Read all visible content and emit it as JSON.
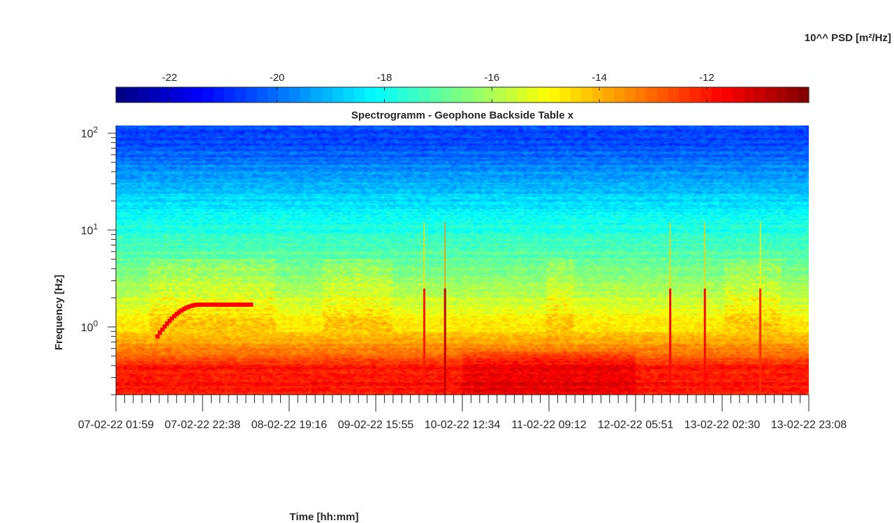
{
  "chart_data": {
    "type": "heatmap",
    "title": "Spectrogramm - Geophone Backside Table x",
    "xlabel": "Time [hh:mm]",
    "ylabel": "Frequency [Hz]",
    "y_scale": "log",
    "ylim": [
      0.2,
      120
    ],
    "y_ticks": [
      1,
      10,
      100
    ],
    "y_tick_labels": [
      {
        "base": "10",
        "exp": "0"
      },
      {
        "base": "10",
        "exp": "1"
      },
      {
        "base": "10",
        "exp": "2"
      }
    ],
    "x_tick_labels": [
      "07-02-22 01:59",
      "07-02-22 22:38",
      "08-02-22 19:16",
      "09-02-22 15:55",
      "10-02-22 12:34",
      "11-02-22 09:12",
      "12-02-22 05:51",
      "13-02-22 02:30",
      "13-02-22 23:08"
    ],
    "colorbar": {
      "label": "10^^ PSD [m²/Hz]",
      "range": [
        -23,
        -10.1
      ],
      "ticks": [
        -22,
        -20,
        -18,
        -16,
        -14,
        -12
      ],
      "tick_labels": [
        "-22",
        "-20",
        "-18",
        "-16",
        "-14",
        "-12"
      ],
      "colormap": "jet",
      "placement": "top"
    },
    "frequency_bands_log10_psd": [
      {
        "freq_range_hz": [
          50,
          120
        ],
        "log10_psd": -20.5
      },
      {
        "freq_range_hz": [
          15,
          50
        ],
        "log10_psd": -19.0
      },
      {
        "freq_range_hz": [
          5,
          15
        ],
        "log10_psd": -17.5
      },
      {
        "freq_range_hz": [
          1.2,
          5
        ],
        "log10_psd": -16.0
      },
      {
        "freq_range_hz": [
          0.7,
          1.2
        ],
        "log10_psd": -14.5
      },
      {
        "freq_range_hz": [
          0.2,
          0.7
        ],
        "log10_psd": -12.0
      }
    ],
    "features": [
      {
        "kind": "ramp_line",
        "t_start": 0.06,
        "t_end": 0.195,
        "f_start_hz": 0.8,
        "f_end_hz": 1.7,
        "log10_psd": -11.7
      },
      {
        "kind": "broadband_spike",
        "t": 0.475,
        "log10_psd": -11.0
      },
      {
        "kind": "broadband_spike",
        "t": 0.445,
        "log10_psd": -12.0
      },
      {
        "kind": "broadband_spike",
        "t": 0.8,
        "log10_psd": -11.8
      },
      {
        "kind": "broadband_spike",
        "t": 0.85,
        "log10_psd": -11.8
      },
      {
        "kind": "broadband_spike",
        "t": 0.93,
        "log10_psd": -12.3
      }
    ]
  }
}
